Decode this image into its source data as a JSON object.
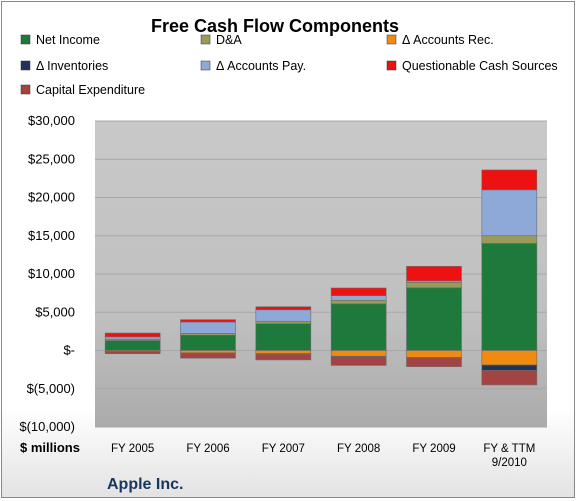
{
  "chart_data": {
    "type": "bar",
    "stacked": true,
    "title": "Free Cash Flow Components",
    "ylabel": "$ millions",
    "company": "Apple Inc.",
    "categories": [
      "FY 2005",
      "FY 2006",
      "FY 2007",
      "FY 2008",
      "FY 2009",
      "FY & TTM 9/2010"
    ],
    "yticks": [
      "$30,000",
      "$25,000",
      "$20,000",
      "$15,000",
      "$10,000",
      "$5,000",
      "$-",
      "$(5,000)",
      "$(10,000)"
    ],
    "ylim": [
      -10000,
      30000
    ],
    "grid": true,
    "legend_position": "top",
    "series": [
      {
        "name": "Net Income",
        "color": "#1e7a3c",
        "values": [
          1300,
          2000,
          3500,
          6100,
          8200,
          14000
        ]
      },
      {
        "name": "D&A",
        "color": "#9a9b5a",
        "values": [
          180,
          230,
          320,
          470,
          700,
          1000
        ]
      },
      {
        "name": "Δ Accounts Rec.",
        "color": "#f08a10",
        "values": [
          -120,
          -300,
          -400,
          -750,
          -900,
          -1900
        ]
      },
      {
        "name": "Δ Inventories",
        "color": "#1f3458",
        "values": [
          -50,
          -100,
          -80,
          -100,
          -60,
          -700
        ]
      },
      {
        "name": "Δ Accounts Pay.",
        "color": "#8ea9d8",
        "values": [
          300,
          1500,
          1500,
          600,
          200,
          6000
        ]
      },
      {
        "name": "Questionable Cash Sources",
        "color": "#ee1111",
        "values": [
          500,
          300,
          400,
          1000,
          1900,
          2600
        ]
      },
      {
        "name": "Capital Expenditure",
        "color": "#a34343",
        "values": [
          -250,
          -600,
          -750,
          -1100,
          -1150,
          -1900
        ]
      }
    ]
  }
}
